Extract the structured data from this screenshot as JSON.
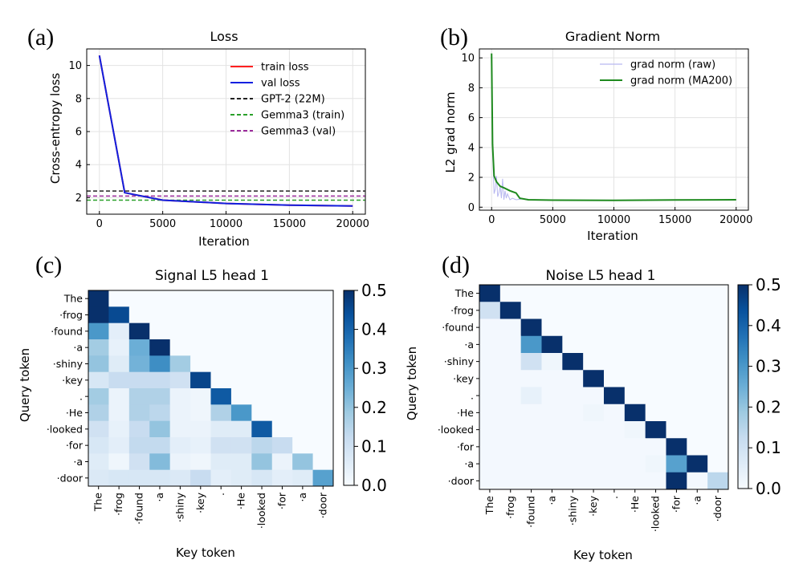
{
  "colors": {
    "train": "#ff2020",
    "val": "#1020e0",
    "gpt2": "#222222",
    "gemma_train": "#2aa02a",
    "gemma_val": "#9a2a9a",
    "grad_raw": "#b8b8f0",
    "grad_ma": "#1f8a1f"
  },
  "chart_data": [
    {
      "panel": "(a)",
      "type": "line",
      "title": "Loss",
      "xlabel": "Iteration",
      "ylabel": "Cross-entropy loss",
      "xlim": [
        -1000,
        21000
      ],
      "ylim": [
        1.0,
        11.0
      ],
      "xticks": [
        0,
        5000,
        10000,
        15000,
        20000
      ],
      "yticks": [
        2,
        4,
        6,
        8,
        10
      ],
      "grid": true,
      "legend_position": "top-right",
      "series": [
        {
          "name": "train loss",
          "key": "train",
          "style": "solid",
          "x": [
            0,
            2000,
            5000,
            10000,
            15000,
            20000
          ],
          "y": [
            10.6,
            2.3,
            1.85,
            1.65,
            1.55,
            1.5
          ]
        },
        {
          "name": "val loss",
          "key": "val",
          "style": "solid",
          "x": [
            0,
            2000,
            5000,
            10000,
            15000,
            20000
          ],
          "y": [
            10.6,
            2.3,
            1.85,
            1.65,
            1.55,
            1.5
          ]
        }
      ],
      "hlines": [
        {
          "name": "GPT-2 (22M)",
          "key": "gpt2",
          "y": 2.4
        },
        {
          "name": "Gemma3 (train)",
          "key": "gemma_train",
          "y": 1.85
        },
        {
          "name": "Gemma3 (val)",
          "key": "gemma_val",
          "y": 2.1
        }
      ]
    },
    {
      "panel": "(b)",
      "type": "line",
      "title": "Gradient Norm",
      "xlabel": "Iteration",
      "ylabel": "L2 grad norm",
      "xlim": [
        -1000,
        21000
      ],
      "ylim": [
        -0.2,
        10.6
      ],
      "xticks": [
        0,
        5000,
        10000,
        15000,
        20000
      ],
      "yticks": [
        0,
        2,
        4,
        6,
        8,
        10
      ],
      "grid": true,
      "legend_position": "top-right",
      "series": [
        {
          "name": "grad norm (raw)",
          "key": "grad_raw",
          "style": "solid",
          "x": [
            0,
            100,
            200,
            300,
            400,
            500,
            600,
            700,
            800,
            900,
            1000,
            1100,
            1200,
            1300,
            1500,
            1700,
            2000,
            2500,
            3000,
            5000,
            10000,
            15000,
            20000
          ],
          "y": [
            10.2,
            3.2,
            0.9,
            1.2,
            2.1,
            0.7,
            1.0,
            1.4,
            0.6,
            1.9,
            0.5,
            1.1,
            0.6,
            0.9,
            0.5,
            0.6,
            0.5,
            0.55,
            0.5,
            0.48,
            0.46,
            0.48,
            0.5
          ]
        },
        {
          "name": "grad norm (MA200)",
          "key": "grad_ma",
          "style": "solid",
          "x": [
            0,
            80,
            200,
            400,
            700,
            1000,
            1500,
            2000,
            2300,
            3000,
            5000,
            10000,
            15000,
            20000
          ],
          "y": [
            10.3,
            4.2,
            2.1,
            1.7,
            1.4,
            1.3,
            1.1,
            0.95,
            0.6,
            0.5,
            0.47,
            0.46,
            0.48,
            0.5
          ]
        }
      ]
    },
    {
      "panel": "(c)",
      "type": "heatmap",
      "title": "Signal L5 head 1",
      "xlabel": "Key token",
      "ylabel": "Query token",
      "vmin": 0.0,
      "vmax": 0.5,
      "colorbar_ticks": [
        "0.0",
        "0.1",
        "0.2",
        "0.3",
        "0.4",
        "0.5"
      ],
      "tokens": [
        "The",
        "·frog",
        "·found",
        "·a",
        "·shiny",
        "·key",
        ".",
        "·He",
        "·looked",
        "·for",
        "·a",
        "·door"
      ],
      "matrix": [
        [
          1.0,
          0,
          0,
          0,
          0,
          0,
          0,
          0,
          0,
          0,
          0,
          0
        ],
        [
          0.55,
          0.45,
          0,
          0,
          0,
          0,
          0,
          0,
          0,
          0,
          0,
          0
        ],
        [
          0.3,
          0.05,
          0.65,
          0,
          0,
          0,
          0,
          0,
          0,
          0,
          0,
          0
        ],
        [
          0.18,
          0.04,
          0.25,
          0.53,
          0,
          0,
          0,
          0,
          0,
          0,
          0,
          0
        ],
        [
          0.2,
          0.06,
          0.24,
          0.32,
          0.18,
          0,
          0,
          0,
          0,
          0,
          0,
          0
        ],
        [
          0.08,
          0.12,
          0.12,
          0.12,
          0.1,
          0.46,
          0,
          0,
          0,
          0,
          0,
          0
        ],
        [
          0.18,
          0.03,
          0.16,
          0.16,
          0.03,
          0.02,
          0.42,
          0,
          0,
          0,
          0,
          0
        ],
        [
          0.16,
          0.03,
          0.16,
          0.14,
          0.03,
          0.02,
          0.16,
          0.3,
          0,
          0,
          0,
          0
        ],
        [
          0.1,
          0.04,
          0.12,
          0.2,
          0.03,
          0.03,
          0.06,
          0.06,
          0.42,
          0,
          0,
          0
        ],
        [
          0.08,
          0.05,
          0.13,
          0.13,
          0.05,
          0.04,
          0.1,
          0.1,
          0.14,
          0.12,
          0,
          0
        ],
        [
          0.06,
          0.02,
          0.1,
          0.22,
          0.03,
          0.02,
          0.06,
          0.06,
          0.2,
          0.03,
          0.2,
          0
        ],
        [
          0.07,
          0.08,
          0.08,
          0.08,
          0.07,
          0.12,
          0.05,
          0.06,
          0.08,
          0.05,
          0.06,
          0.28
        ]
      ]
    },
    {
      "panel": "(d)",
      "type": "heatmap",
      "title": "Noise L5 head 1",
      "xlabel": "Key token",
      "ylabel": "Query token",
      "vmin": 0.0,
      "vmax": 0.5,
      "colorbar_ticks": [
        "0.0",
        "0.1",
        "0.2",
        "0.3",
        "0.4",
        "0.5"
      ],
      "tokens": [
        "The",
        "·frog",
        "·found",
        "·a",
        "·shiny",
        "·key",
        ".",
        "·He",
        "·looked",
        "·for",
        "·a",
        "·door"
      ],
      "matrix": [
        [
          1.0,
          0,
          0,
          0,
          0,
          0,
          0,
          0,
          0,
          0,
          0,
          0
        ],
        [
          0.1,
          0.9,
          0,
          0,
          0,
          0,
          0,
          0,
          0,
          0,
          0,
          0
        ],
        [
          0.01,
          0.01,
          0.98,
          0,
          0,
          0,
          0,
          0,
          0,
          0,
          0,
          0
        ],
        [
          0.01,
          0.01,
          0.3,
          0.68,
          0,
          0,
          0,
          0,
          0,
          0,
          0,
          0
        ],
        [
          0.01,
          0.01,
          0.1,
          0.02,
          0.86,
          0,
          0,
          0,
          0,
          0,
          0,
          0
        ],
        [
          0.01,
          0.01,
          0.01,
          0.01,
          0.01,
          0.95,
          0,
          0,
          0,
          0,
          0,
          0
        ],
        [
          0.01,
          0.01,
          0.04,
          0.01,
          0.01,
          0.01,
          0.91,
          0,
          0,
          0,
          0,
          0
        ],
        [
          0.01,
          0.01,
          0.01,
          0.01,
          0.01,
          0.02,
          0.01,
          0.92,
          0,
          0,
          0,
          0
        ],
        [
          0.01,
          0.01,
          0.01,
          0.01,
          0.01,
          0.01,
          0.01,
          0.02,
          0.91,
          0,
          0,
          0
        ],
        [
          0.01,
          0.01,
          0.01,
          0.01,
          0.01,
          0.01,
          0.01,
          0.01,
          0.01,
          0.91,
          0,
          0
        ],
        [
          0.01,
          0.01,
          0.01,
          0.01,
          0.01,
          0.01,
          0.01,
          0.01,
          0.02,
          0.28,
          0.62,
          0
        ],
        [
          0.01,
          0.01,
          0.01,
          0.01,
          0.01,
          0.01,
          0.01,
          0.01,
          0.01,
          0.78,
          0.01,
          0.14
        ]
      ]
    }
  ]
}
